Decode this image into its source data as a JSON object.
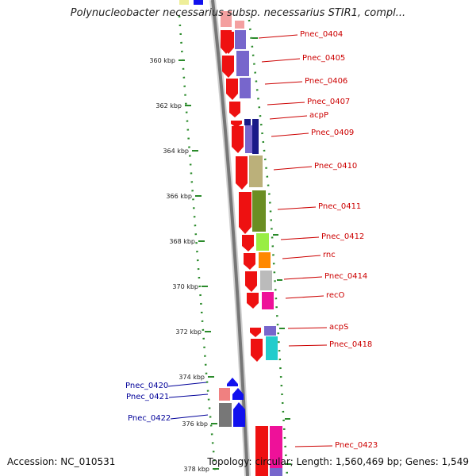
{
  "title": "Polynucleobacter necessarius subsp. necessarius STIR1, compl...",
  "accession": "Accession: NC_010531",
  "summary": "Topology: circular; Length: 1,560,469 bp; Genes: 1,549",
  "ticks": [
    "360 kbp",
    "362 kbp",
    "364 kbp",
    "366 kbp",
    "368 kbp",
    "370 kbp",
    "372 kbp",
    "374 kbp",
    "376 kbp",
    "378 kbp"
  ],
  "colors": {
    "forward": "#ee1111",
    "reverse": "#1111ee",
    "label_right": "#cc0000",
    "label_left": "#000099",
    "guide": "#2a8a2a",
    "backbone": "#888888"
  },
  "genes_right": [
    {
      "label": "Pnec_0404",
      "cog": "#7766cc"
    },
    {
      "label": "Pnec_0405",
      "cog": "#7766cc"
    },
    {
      "label": "Pnec_0406",
      "cog": "#7766cc"
    },
    {
      "label": "Pnec_0407",
      "cog": "#ffffff"
    },
    {
      "label": "acpP",
      "cog": "#1a1a88"
    },
    {
      "label": "Pnec_0409",
      "cog": "#7766cc"
    },
    {
      "label": "Pnec_0410",
      "cog": "#bbb07a"
    },
    {
      "label": "Pnec_0411",
      "cog": "#6b8e23"
    },
    {
      "label": "Pnec_0412",
      "cog": "#99ee44"
    },
    {
      "label": "rnc",
      "cog": "#ff8800"
    },
    {
      "label": "Pnec_0414",
      "cog": "#bbbbbb"
    },
    {
      "label": "recO",
      "cog": "#ee1199"
    },
    {
      "label": "acpS",
      "cog": "#7766cc"
    },
    {
      "label": "Pnec_0418",
      "cog": "#22cccc"
    },
    {
      "label": "Pnec_0423",
      "cog": "#ee1199"
    }
  ],
  "genes_left": [
    {
      "label": "Pnec_0420"
    },
    {
      "label": "Pnec_0421"
    },
    {
      "label": "Pnec_0422"
    }
  ]
}
